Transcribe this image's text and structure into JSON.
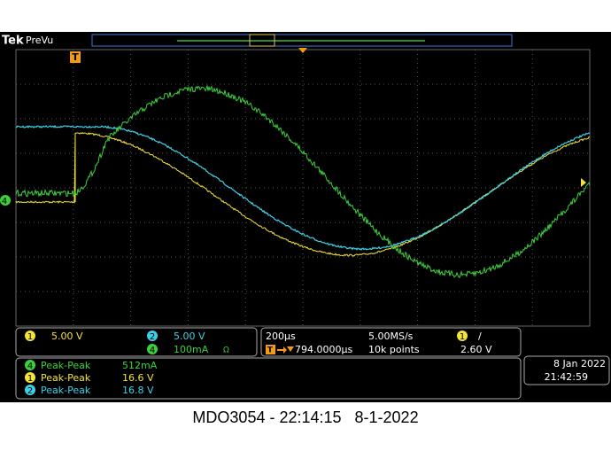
{
  "header": {
    "brand": "Tek",
    "mode": "PreVu"
  },
  "trigger_marker": "T",
  "channels": [
    {
      "number": "1",
      "scale": "5.00 V"
    },
    {
      "number": "2",
      "scale": "5.00 V"
    },
    {
      "number": "4",
      "scale": "100mA",
      "icon": "Ω"
    }
  ],
  "timebase": {
    "horizontal_scale": "200µs",
    "sample_rate": "5.00MS/s",
    "trigger_position": "794.0000µs",
    "record_length": "10k points",
    "trigger_channel": "1",
    "trigger_slope": "/",
    "trigger_level": "2.60 V"
  },
  "measurements": [
    {
      "channel": "4",
      "label": "Peak-Peak",
      "value": "512mA"
    },
    {
      "channel": "1",
      "label": "Peak-Peak",
      "value": "16.6 V"
    },
    {
      "channel": "2",
      "label": "Peak-Peak",
      "value": "16.8 V"
    }
  ],
  "datetime": {
    "date": "8 Jan 2022",
    "time": "21:42:59"
  },
  "caption": "MDO3054 - 22:14:15   8-1-2022"
}
